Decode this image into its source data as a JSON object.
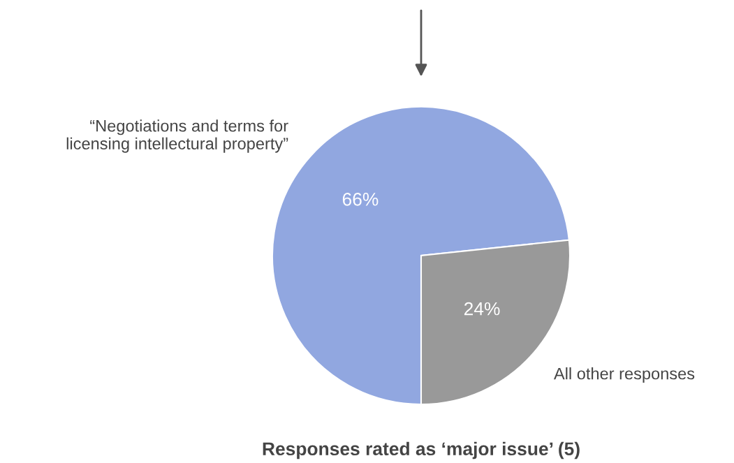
{
  "chart_data": {
    "type": "pie",
    "title": "Responses rated as ‘major issue’ (5)",
    "categories": [
      "“Negotiations and terms for\nlicensing intellectural property”",
      "All other responses"
    ],
    "values": [
      66,
      24
    ],
    "value_labels": [
      "66%",
      "24%"
    ],
    "colors": [
      "#91a7e0",
      "#999999"
    ]
  }
}
